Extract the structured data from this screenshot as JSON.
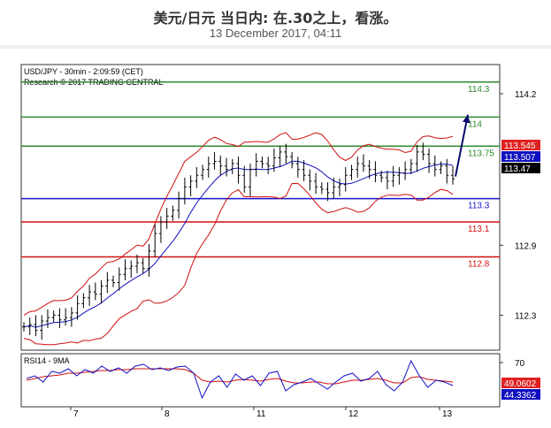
{
  "header": {
    "title": "美元/日元 当日内: 在.30之上，看涨。",
    "date": "13 December 2017, 04:11"
  },
  "chart_data": {
    "type": "candlestick",
    "info_line": "USD/JPY - 30min - 2:09:59 (CET)",
    "copyright": "Research © 2017 TRADING CENTRAL",
    "ylim": [
      112.0,
      114.45
    ],
    "y_ticks": [
      {
        "value": 114.2,
        "label": "114.2"
      },
      {
        "value": 112.9,
        "label": "112.9"
      },
      {
        "value": 112.3,
        "label": "112.3"
      }
    ],
    "x_ticks": [
      "7",
      "8",
      "11",
      "12",
      "13"
    ],
    "levels": [
      {
        "value": 114.3,
        "label": "114.3",
        "color": "#2e8b2e"
      },
      {
        "value": 114.0,
        "label": "114",
        "color": "#2e8b2e"
      },
      {
        "value": 113.75,
        "label": "113.75",
        "color": "#2e8b2e"
      },
      {
        "value": 113.3,
        "label": "113.3",
        "color": "#1515c8"
      },
      {
        "value": 113.1,
        "label": "113.1",
        "color": "#d01010"
      },
      {
        "value": 112.8,
        "label": "112.8",
        "color": "#d01010"
      }
    ],
    "price_tags": [
      {
        "value": 113.545,
        "label": "113.545",
        "color": "#e02020"
      },
      {
        "value": 113.507,
        "label": "113.507",
        "color": "#1010c0"
      },
      {
        "value": 113.47,
        "label": "113.47",
        "color": "#000000"
      }
    ],
    "price_series_close": [
      112.2,
      112.22,
      112.17,
      112.25,
      112.28,
      112.3,
      112.26,
      112.28,
      112.32,
      112.4,
      112.45,
      112.5,
      112.48,
      112.55,
      112.6,
      112.58,
      112.65,
      112.7,
      112.72,
      112.75,
      112.7,
      112.85,
      113.0,
      113.1,
      113.15,
      113.2,
      113.3,
      113.4,
      113.45,
      113.5,
      113.55,
      113.6,
      113.62,
      113.58,
      113.55,
      113.6,
      113.5,
      113.4,
      113.55,
      113.62,
      113.6,
      113.58,
      113.65,
      113.7,
      113.66,
      113.6,
      113.55,
      113.5,
      113.45,
      113.4,
      113.38,
      113.35,
      113.4,
      113.42,
      113.5,
      113.55,
      113.6,
      113.58,
      113.55,
      113.5,
      113.48,
      113.45,
      113.5,
      113.52,
      113.55,
      113.6,
      113.7,
      113.68,
      113.6,
      113.55,
      113.58,
      113.5,
      113.47
    ],
    "rsi": {
      "label": "RSI14 - 9MA",
      "ylim": [
        20,
        80
      ],
      "y_tick": {
        "value": 70,
        "label": "70"
      },
      "series_rsi": [
        52,
        55,
        48,
        60,
        58,
        63,
        55,
        62,
        58,
        66,
        60,
        64,
        58,
        66,
        68,
        62,
        64,
        61,
        65,
        66,
        58,
        30,
        48,
        55,
        42,
        57,
        50,
        55,
        44,
        58,
        60,
        38,
        45,
        48,
        52,
        46,
        40,
        48,
        55,
        58,
        49,
        52,
        60,
        45,
        38,
        48,
        72,
        55,
        42,
        50,
        48,
        44
      ],
      "series_ma": [
        50,
        52,
        54,
        55,
        56,
        58,
        58,
        59,
        60,
        61,
        61,
        62,
        62,
        63,
        63,
        63,
        63,
        63,
        63,
        62,
        58,
        50,
        48,
        49,
        48,
        50,
        51,
        50,
        49,
        51,
        52,
        49,
        47,
        47,
        48,
        48,
        46,
        46,
        48,
        50,
        50,
        51,
        52,
        50,
        47,
        47,
        53,
        54,
        51,
        50,
        49,
        48
      ],
      "tags": [
        {
          "value": 49.0602,
          "label": "49.0602",
          "color": "#e02020"
        },
        {
          "value": 44.3362,
          "label": "44.3362",
          "color": "#1010c0"
        }
      ]
    }
  }
}
